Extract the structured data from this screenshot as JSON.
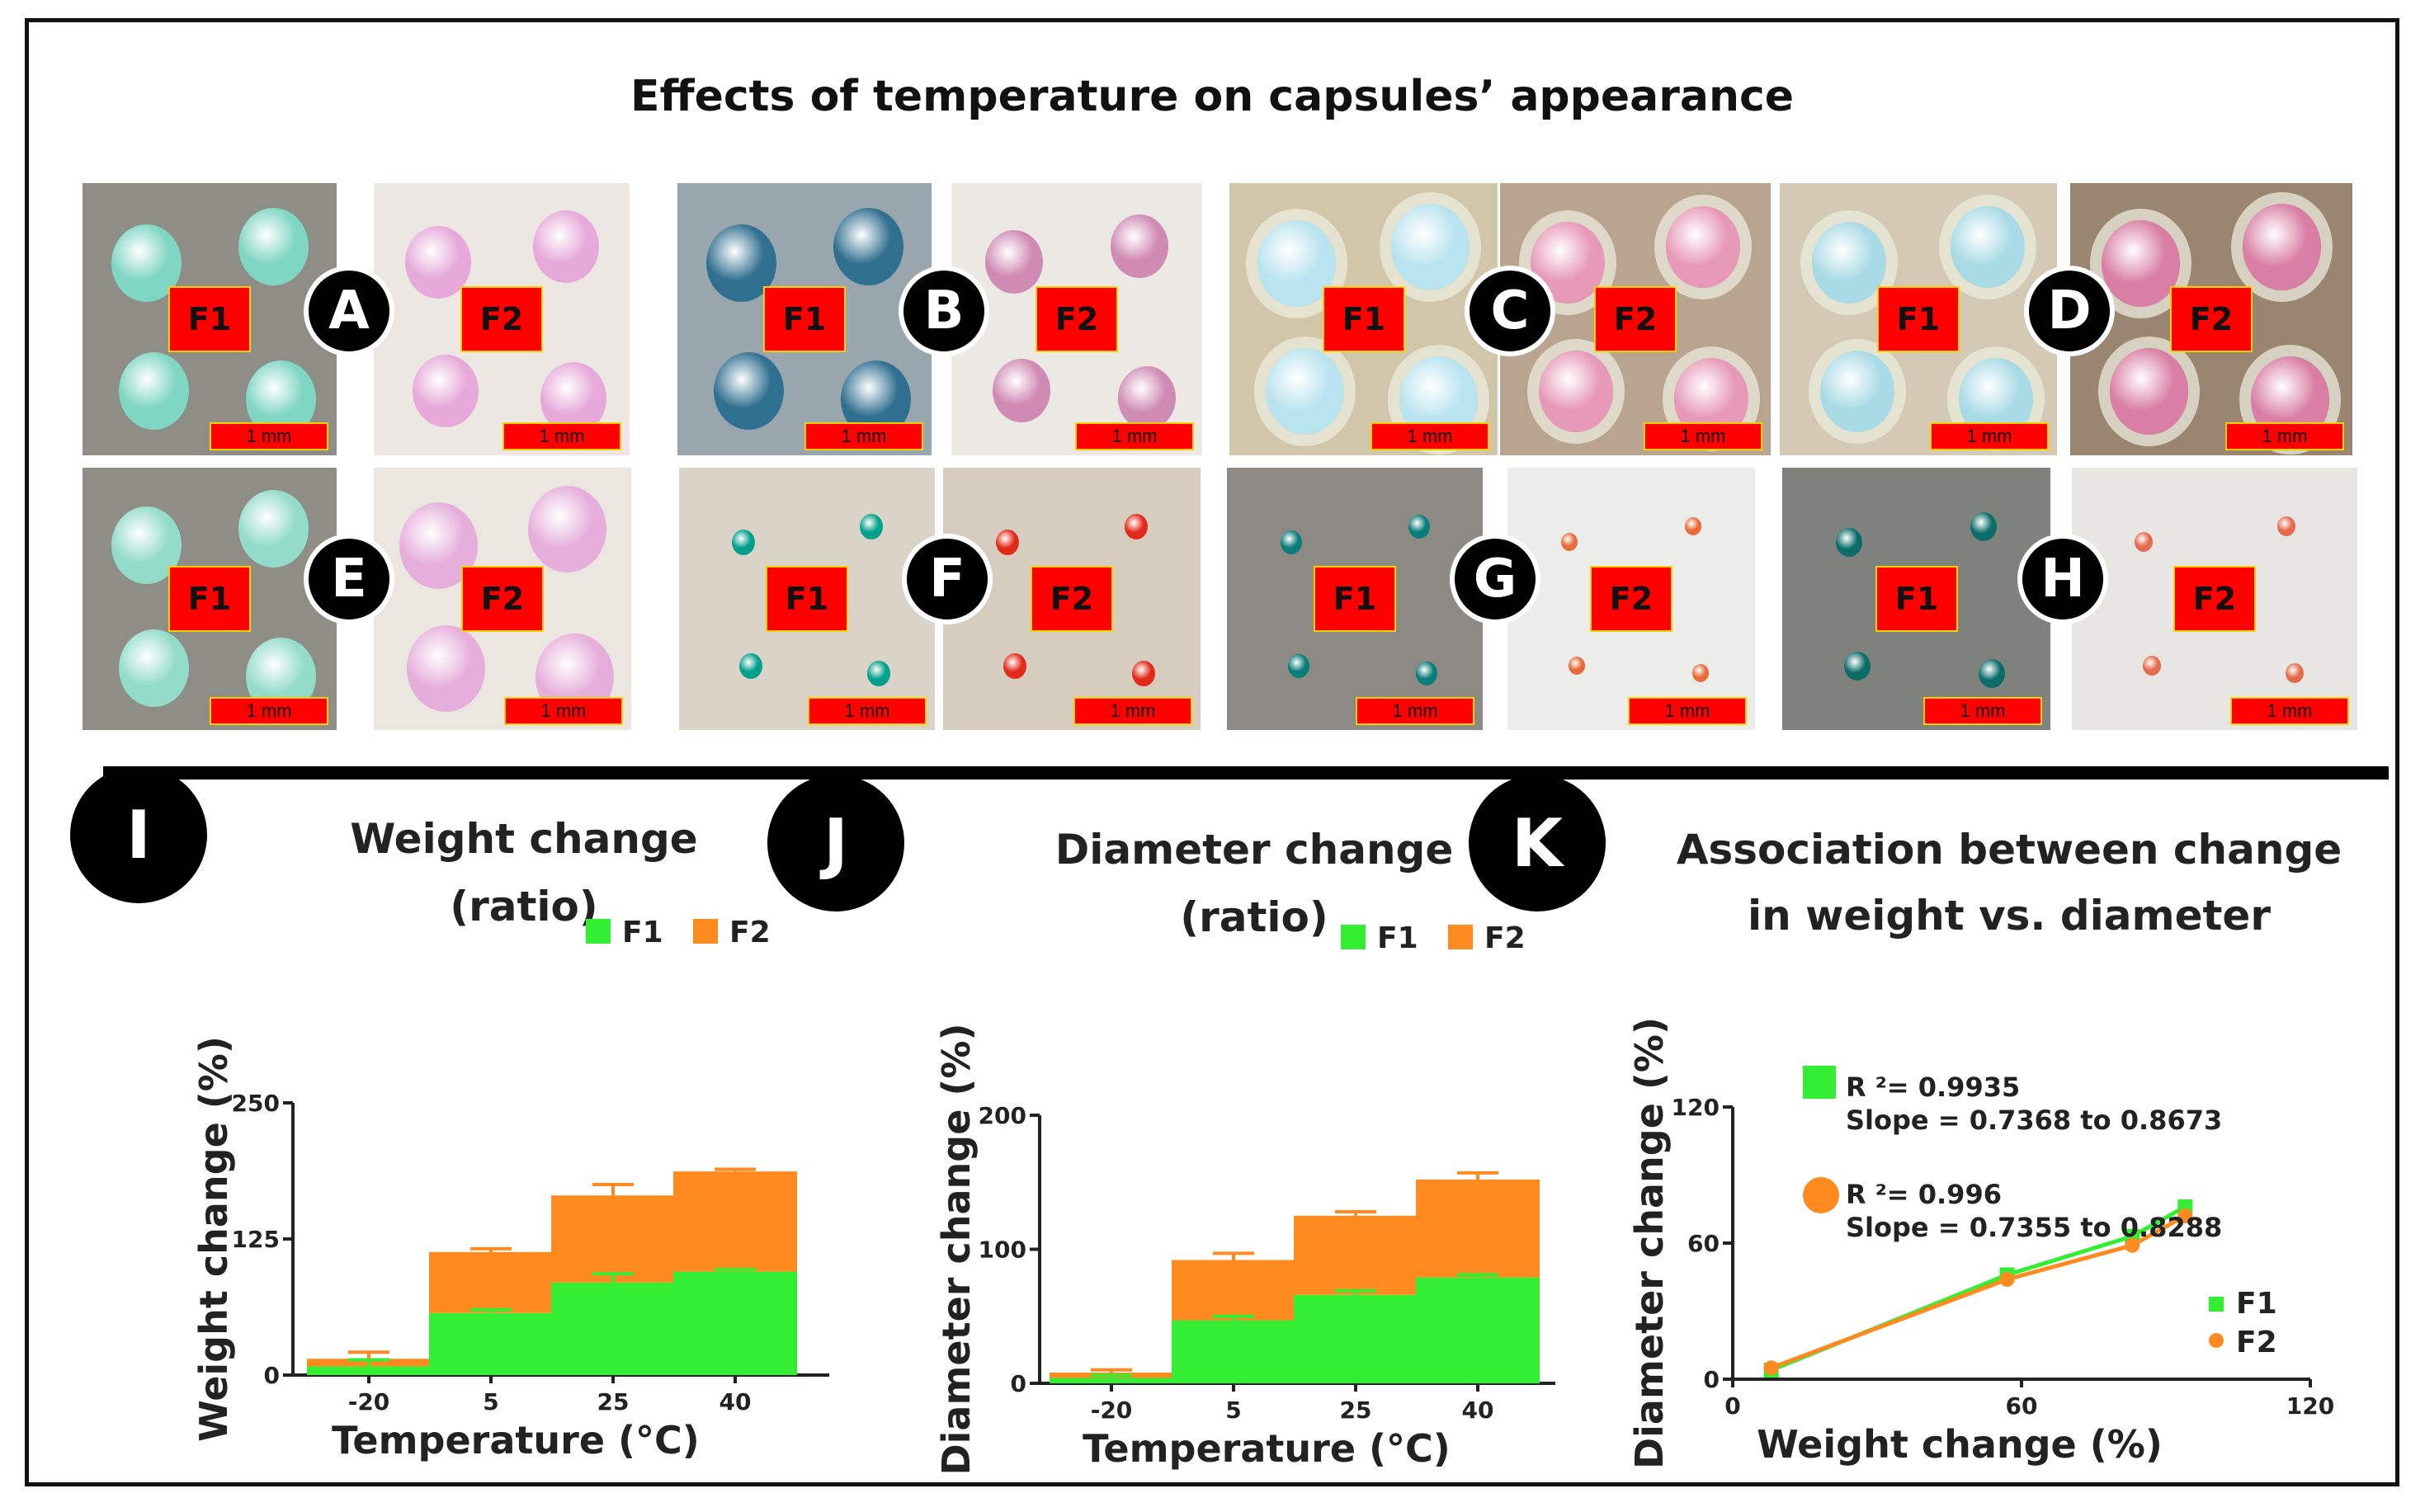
{
  "figure": {
    "title": "Effects of temperature on capsules’ appearance",
    "colors": {
      "f1": "#33ee33",
      "f2": "#ff8a1f",
      "label_red": "#ff0000",
      "label_border": "#ffd000"
    },
    "row1_panels": [
      {
        "letter": "A",
        "photos": [
          {
            "label": "F1",
            "scale": "1 mm"
          },
          {
            "label": "F2",
            "scale": "1 mm"
          }
        ]
      },
      {
        "letter": "B",
        "photos": [
          {
            "label": "F1",
            "scale": "1 mm"
          },
          {
            "label": "F2",
            "scale": "1 mm"
          }
        ]
      },
      {
        "letter": "C",
        "photos": [
          {
            "label": "F1",
            "scale": "1 mm"
          },
          {
            "label": "F2",
            "scale": "1 mm"
          }
        ]
      },
      {
        "letter": "D",
        "photos": [
          {
            "label": "F1",
            "scale": "1 mm"
          },
          {
            "label": "F2",
            "scale": "1 mm"
          }
        ]
      }
    ],
    "row2_panels": [
      {
        "letter": "E",
        "photos": [
          {
            "label": "F1",
            "scale": "1 mm"
          },
          {
            "label": "F2",
            "scale": "1 mm"
          }
        ]
      },
      {
        "letter": "F",
        "photos": [
          {
            "label": "F1",
            "scale": "1 mm"
          },
          {
            "label": "F2",
            "scale": "1 mm"
          }
        ]
      },
      {
        "letter": "G",
        "photos": [
          {
            "label": "F1",
            "scale": "1 mm"
          },
          {
            "label": "F2",
            "scale": "1 mm"
          }
        ]
      },
      {
        "letter": "H",
        "photos": [
          {
            "label": "F1",
            "scale": "1 mm"
          },
          {
            "label": "F2",
            "scale": "1 mm"
          }
        ]
      }
    ],
    "chart_letters": [
      "I",
      "J",
      "K"
    ]
  },
  "chart_data": [
    {
      "type": "bar",
      "stacked": true,
      "title": [
        "Weight change",
        "(ratio)"
      ],
      "xlabel": "Temperature (°C)",
      "ylabel": "Weight change (%)",
      "categories": [
        "-20",
        "5",
        "25",
        "40"
      ],
      "ylim": [
        0,
        250
      ],
      "yticks": [
        "0",
        "125",
        "250"
      ],
      "series": [
        {
          "name": "F1",
          "values": [
            8,
            57,
            85,
            95
          ],
          "errors": [
            6,
            3,
            8,
            2
          ]
        },
        {
          "name": "F2",
          "values": [
            7,
            56,
            80,
            92
          ],
          "errors": [
            6,
            3,
            10,
            2
          ]
        }
      ],
      "legend": "top-right"
    },
    {
      "type": "bar",
      "stacked": true,
      "title": [
        "Diameter change",
        "(ratio)"
      ],
      "xlabel": "Temperature (°C)",
      "ylabel": "Diameter change (%)",
      "categories": [
        "-20",
        "5",
        "25",
        "40"
      ],
      "ylim": [
        0,
        200
      ],
      "yticks": [
        "0",
        "100",
        "200"
      ],
      "series": [
        {
          "name": "F1",
          "values": [
            4,
            47,
            66,
            79
          ],
          "errors": [
            2,
            3,
            3,
            2
          ]
        },
        {
          "name": "F2",
          "values": [
            4,
            45,
            59,
            73
          ],
          "errors": [
            2,
            5,
            3,
            5
          ]
        }
      ],
      "legend": "top-right"
    },
    {
      "type": "line",
      "title": [
        "Association between change",
        "in weight vs. diameter"
      ],
      "xlabel": "Weight change (%)",
      "ylabel": "Diameter change (%)",
      "xlim": [
        0,
        120
      ],
      "ylim": [
        0,
        120
      ],
      "xticks": [
        "0",
        "60",
        "120"
      ],
      "yticks": [
        "0",
        "60",
        "120"
      ],
      "series": [
        {
          "name": "F1",
          "x": [
            8,
            57,
            83,
            94
          ],
          "y": [
            4,
            46,
            63,
            76
          ]
        },
        {
          "name": "F2",
          "x": [
            8,
            57,
            83,
            94
          ],
          "y": [
            5,
            44,
            59,
            72
          ]
        }
      ],
      "annotations": [
        {
          "series": "F1",
          "r2": "R ²= 0.9935",
          "slope": "Slope = 0.7368 to 0.8673"
        },
        {
          "series": "F2",
          "r2": "R ²= 0.996",
          "slope": "Slope = 0.7355 to 0.8288"
        }
      ],
      "legend": "bottom-right"
    }
  ]
}
